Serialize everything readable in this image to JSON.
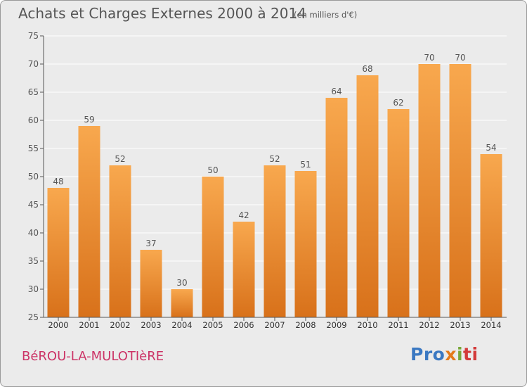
{
  "header": {
    "title": "Achats et Charges Externes 2000 à 2014",
    "unit": "(en milliers d'€)"
  },
  "footer": {
    "commune": "BéROU-LA-MULOTIèRE",
    "logo_parts": [
      "Pro",
      "x",
      "i",
      "ti"
    ]
  },
  "colors": {
    "bar_top": "#f8a84e",
    "bar_bottom": "#d8711a",
    "axis": "#555555",
    "grid": "#ffffff",
    "commune": "#cc3366"
  },
  "chart_data": {
    "type": "bar",
    "title": "Achats et Charges Externes 2000 à 2014",
    "subtitle": "(en milliers d'€)",
    "categories": [
      "2000",
      "2001",
      "2002",
      "2003",
      "2004",
      "2005",
      "2006",
      "2007",
      "2008",
      "2009",
      "2010",
      "2011",
      "2012",
      "2013",
      "2014"
    ],
    "values": [
      48,
      59,
      52,
      37,
      30,
      50,
      42,
      52,
      51,
      64,
      68,
      62,
      70,
      70,
      54
    ],
    "ylim": [
      25,
      75
    ],
    "yticks": [
      25,
      30,
      35,
      40,
      45,
      50,
      55,
      60,
      65,
      70,
      75
    ],
    "grid": true,
    "data_labels": true,
    "legend": "none"
  }
}
